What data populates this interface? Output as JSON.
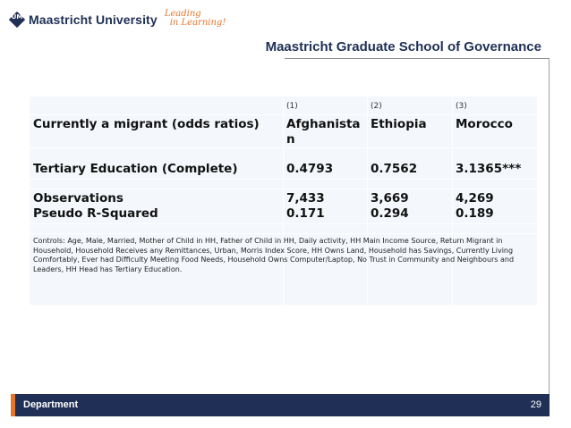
{
  "header": {
    "logo_mark": "UM",
    "university": "Maastricht University",
    "tagline_line1": "Leading",
    "tagline_line2": "in Learning!",
    "school": "Maastricht Graduate School of Governance"
  },
  "table": {
    "column_numbers": [
      "(1)",
      "(2)",
      "(3)"
    ],
    "header_label": "Currently a migrant (odds ratios)",
    "countries": [
      "Afghanista\nn",
      "Ethiopia",
      "Morocco"
    ],
    "rows": [
      {
        "label": "Tertiary Education (Complete)",
        "values": [
          "0.4793",
          "0.7562",
          "3.1365***"
        ]
      },
      {
        "label": "Observations",
        "values": [
          "7,433",
          "3,669",
          "4,269"
        ]
      },
      {
        "label": "Pseudo R-Squared",
        "values": [
          "0.171",
          "0.294",
          "0.189"
        ]
      }
    ],
    "notes": "Controls: Age, Male, Married, Mother of Child in HH, Father of Child in HH, Daily activity, HH Main Income Source, Return Migrant in Household, Household Receives any Remittances, Urban, Morris Index Score, HH Owns Land, Household has Savings, Currently Living Comfortably, Ever had Difficulty Meeting Food Needs, Household Owns Computer/Laptop, No Trust in Community and Neighbours and Leaders, HH Head has Tertiary Education."
  },
  "footer": {
    "department": "Department",
    "page": "29"
  },
  "colors": {
    "navy": "#1f2f55",
    "orange": "#e8742a",
    "table_bg": "#f4f8fc"
  }
}
